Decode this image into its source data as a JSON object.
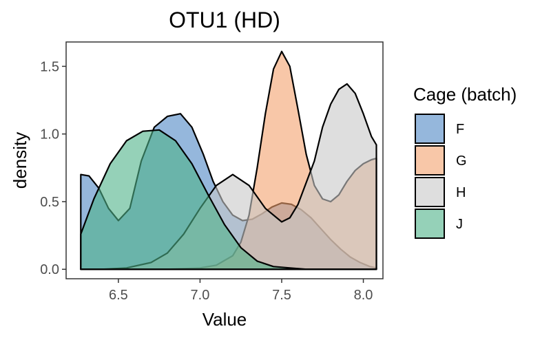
{
  "chart_data": {
    "type": "area",
    "subtype": "density",
    "title": "OTU1 (HD)",
    "xlabel": "Value",
    "ylabel": "density",
    "xlim": [
      6.18,
      8.12
    ],
    "ylim": [
      -0.07,
      1.68
    ],
    "xticks": [
      6.5,
      7.0,
      7.5,
      8.0
    ],
    "xtick_labels": [
      "6.5",
      "7.0",
      "7.5",
      "8.0"
    ],
    "yticks": [
      0.0,
      0.5,
      1.0,
      1.5
    ],
    "ytick_labels": [
      "0.0",
      "0.5",
      "1.0",
      "1.5"
    ],
    "grid": false,
    "legend": {
      "title": "Cage (batch)",
      "position": "right"
    },
    "series": [
      {
        "name": "F",
        "color": "#4f87c4",
        "x": [
          6.27,
          6.32,
          6.38,
          6.44,
          6.5,
          6.57,
          6.64,
          6.72,
          6.8,
          6.88,
          6.95,
          7.02,
          7.08,
          7.14,
          7.2,
          7.26,
          7.32,
          7.38,
          7.44,
          7.5,
          7.56,
          7.62,
          7.68,
          7.74,
          7.8,
          7.86,
          7.92,
          7.98,
          8.04,
          8.08
        ],
        "y": [
          0.7,
          0.69,
          0.6,
          0.45,
          0.36,
          0.45,
          0.8,
          1.05,
          1.13,
          1.15,
          1.05,
          0.85,
          0.65,
          0.5,
          0.4,
          0.36,
          0.37,
          0.41,
          0.46,
          0.49,
          0.48,
          0.44,
          0.38,
          0.3,
          0.22,
          0.15,
          0.09,
          0.05,
          0.02,
          0.01
        ]
      },
      {
        "name": "G",
        "color": "#f4a26e",
        "x": [
          6.27,
          6.5,
          6.8,
          7.0,
          7.1,
          7.2,
          7.25,
          7.3,
          7.35,
          7.4,
          7.45,
          7.5,
          7.55,
          7.6,
          7.65,
          7.7,
          7.75,
          7.8,
          7.85,
          7.9,
          7.95,
          8.0,
          8.05,
          8.08
        ],
        "y": [
          0.0,
          0.0,
          0.0,
          0.01,
          0.03,
          0.1,
          0.2,
          0.4,
          0.75,
          1.15,
          1.48,
          1.61,
          1.5,
          1.18,
          0.85,
          0.62,
          0.52,
          0.5,
          0.55,
          0.65,
          0.73,
          0.78,
          0.81,
          0.82
        ]
      },
      {
        "name": "H",
        "color": "#c8c8c8",
        "x": [
          6.27,
          6.4,
          6.55,
          6.7,
          6.8,
          6.9,
          7.0,
          7.1,
          7.2,
          7.3,
          7.4,
          7.5,
          7.55,
          7.6,
          7.7,
          7.75,
          7.8,
          7.85,
          7.9,
          7.95,
          8.0,
          8.05,
          8.08
        ],
        "y": [
          0.0,
          0.0,
          0.01,
          0.05,
          0.12,
          0.26,
          0.45,
          0.62,
          0.7,
          0.62,
          0.45,
          0.35,
          0.38,
          0.48,
          0.8,
          1.05,
          1.22,
          1.33,
          1.37,
          1.3,
          1.15,
          0.98,
          0.92
        ]
      },
      {
        "name": "J",
        "color": "#4eb288",
        "x": [
          6.27,
          6.35,
          6.45,
          6.55,
          6.65,
          6.75,
          6.85,
          6.95,
          7.05,
          7.15,
          7.25,
          7.35,
          7.45,
          7.55,
          7.65,
          7.75,
          7.85,
          7.95,
          8.05,
          8.08
        ],
        "y": [
          0.26,
          0.52,
          0.78,
          0.95,
          1.02,
          1.03,
          0.95,
          0.78,
          0.55,
          0.33,
          0.16,
          0.06,
          0.02,
          0.01,
          0.0,
          0.0,
          0.0,
          0.0,
          0.0,
          0.0
        ]
      }
    ]
  }
}
